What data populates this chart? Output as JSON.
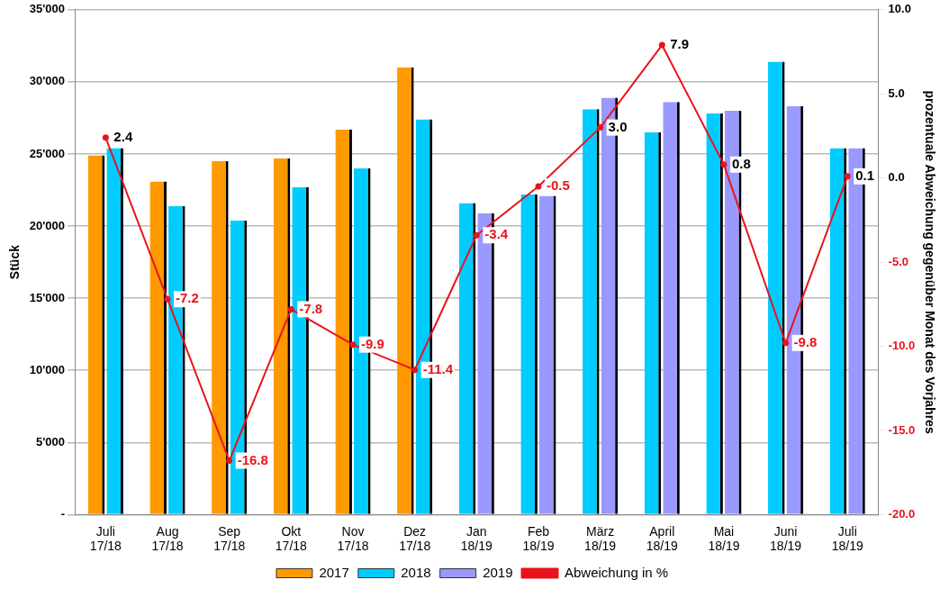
{
  "chart_data": {
    "type": "bar",
    "ylabel": "Stück",
    "y2label": "prozentuale Abweichung gegenüber Monat des Vorjahres",
    "categories": [
      "Juli 17/18",
      "Aug 17/18",
      "Sep 17/18",
      "Okt 17/18",
      "Nov 17/18",
      "Dez 17/18",
      "Jan 18/19",
      "Feb 18/19",
      "März 18/19",
      "April 18/19",
      "Mai 18/19",
      "Juni 18/19",
      "Juli 18/19"
    ],
    "series": [
      {
        "name": "2017",
        "color": "#ff9900",
        "values": [
          24900,
          23100,
          24500,
          24700,
          26700,
          31000,
          null,
          null,
          null,
          null,
          null,
          null,
          null
        ]
      },
      {
        "name": "2018",
        "color": "#00ccff",
        "values": [
          25400,
          21400,
          20400,
          22700,
          24000,
          27400,
          21600,
          22200,
          28100,
          26500,
          27800,
          31400,
          25400
        ]
      },
      {
        "name": "2019",
        "color": "#9999ff",
        "values": [
          null,
          null,
          null,
          null,
          null,
          null,
          20900,
          22100,
          28900,
          28600,
          28000,
          28300,
          25400
        ]
      },
      {
        "name": "Abweichung in %",
        "type": "line",
        "axis": "y2",
        "color": "#e8141c",
        "values": [
          2.4,
          -7.2,
          -16.8,
          -7.8,
          -9.9,
          -11.4,
          -3.4,
          -0.5,
          3.0,
          7.9,
          0.8,
          -9.8,
          0.1
        ],
        "value_labels": [
          "2.4",
          "-7.2",
          "-16.8",
          "-7.8",
          "-9.9",
          "-11.4",
          "-3.4",
          "-0.5",
          "3.0",
          "7.9",
          "0.8",
          "-9.8",
          "0.1"
        ]
      }
    ],
    "ylim": [
      0,
      35000
    ],
    "yticks": [
      {
        "value": 0,
        "label": "-"
      },
      {
        "value": 5000,
        "label": "5'000"
      },
      {
        "value": 10000,
        "label": "10'000"
      },
      {
        "value": 15000,
        "label": "15'000"
      },
      {
        "value": 20000,
        "label": "20'000"
      },
      {
        "value": 25000,
        "label": "25'000"
      },
      {
        "value": 30000,
        "label": "30'000"
      },
      {
        "value": 35000,
        "label": "35'000"
      }
    ],
    "y2lim": [
      -20,
      10
    ],
    "y2ticks": [
      {
        "value": -20,
        "label": "-20.0"
      },
      {
        "value": -15,
        "label": "-15.0"
      },
      {
        "value": -10,
        "label": "-10.0"
      },
      {
        "value": -5,
        "label": "-5.0"
      },
      {
        "value": 0,
        "label": "0.0"
      },
      {
        "value": 5,
        "label": "5.0"
      },
      {
        "value": 10,
        "label": "10.0"
      }
    ],
    "grid": "y",
    "legend": "bottom",
    "marker": "circle",
    "line_style": "solid"
  }
}
